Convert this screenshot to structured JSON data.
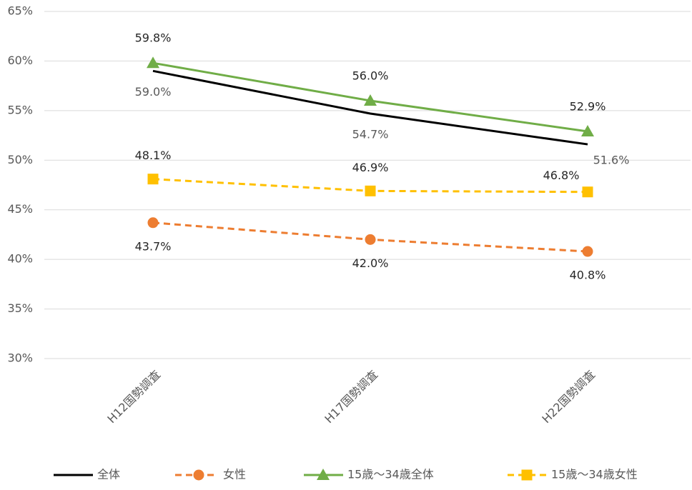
{
  "chart_data": {
    "type": "line",
    "categories": [
      "H12国勢調査",
      "H17国勢調査",
      "H22国勢調査"
    ],
    "series": [
      {
        "name": "全体",
        "color": "#000000",
        "dash": false,
        "marker": "none",
        "values": [
          59.0,
          54.7,
          51.6
        ],
        "value_labels": [
          "59.0%",
          "54.7%",
          "51.6%"
        ]
      },
      {
        "name": "女性",
        "color": "#ed7d31",
        "dash": true,
        "marker": "circle",
        "values": [
          43.7,
          42.0,
          40.8
        ],
        "value_labels": [
          "43.7%",
          "42.0%",
          "40.8%"
        ]
      },
      {
        "name": "15歳～34歳全体",
        "color": "#70ad47",
        "dash": false,
        "marker": "triangle",
        "values": [
          59.8,
          56.0,
          52.9
        ],
        "value_labels": [
          "59.8%",
          "56.0%",
          "52.9%"
        ]
      },
      {
        "name": "15歳～34歳女性",
        "color": "#ffc000",
        "dash": true,
        "marker": "square",
        "values": [
          48.1,
          46.9,
          46.8
        ],
        "value_labels": [
          "48.1%",
          "46.9%",
          "46.8%"
        ]
      }
    ],
    "ylim": [
      30,
      65
    ],
    "yticks": [
      {
        "value": 30,
        "label": "30%"
      },
      {
        "value": 35,
        "label": "35%"
      },
      {
        "value": 40,
        "label": "40%"
      },
      {
        "value": 45,
        "label": "45%"
      },
      {
        "value": 50,
        "label": "50%"
      },
      {
        "value": 55,
        "label": "55%"
      },
      {
        "value": 60,
        "label": "60%"
      },
      {
        "value": 65,
        "label": "65%"
      }
    ],
    "grid": true
  }
}
